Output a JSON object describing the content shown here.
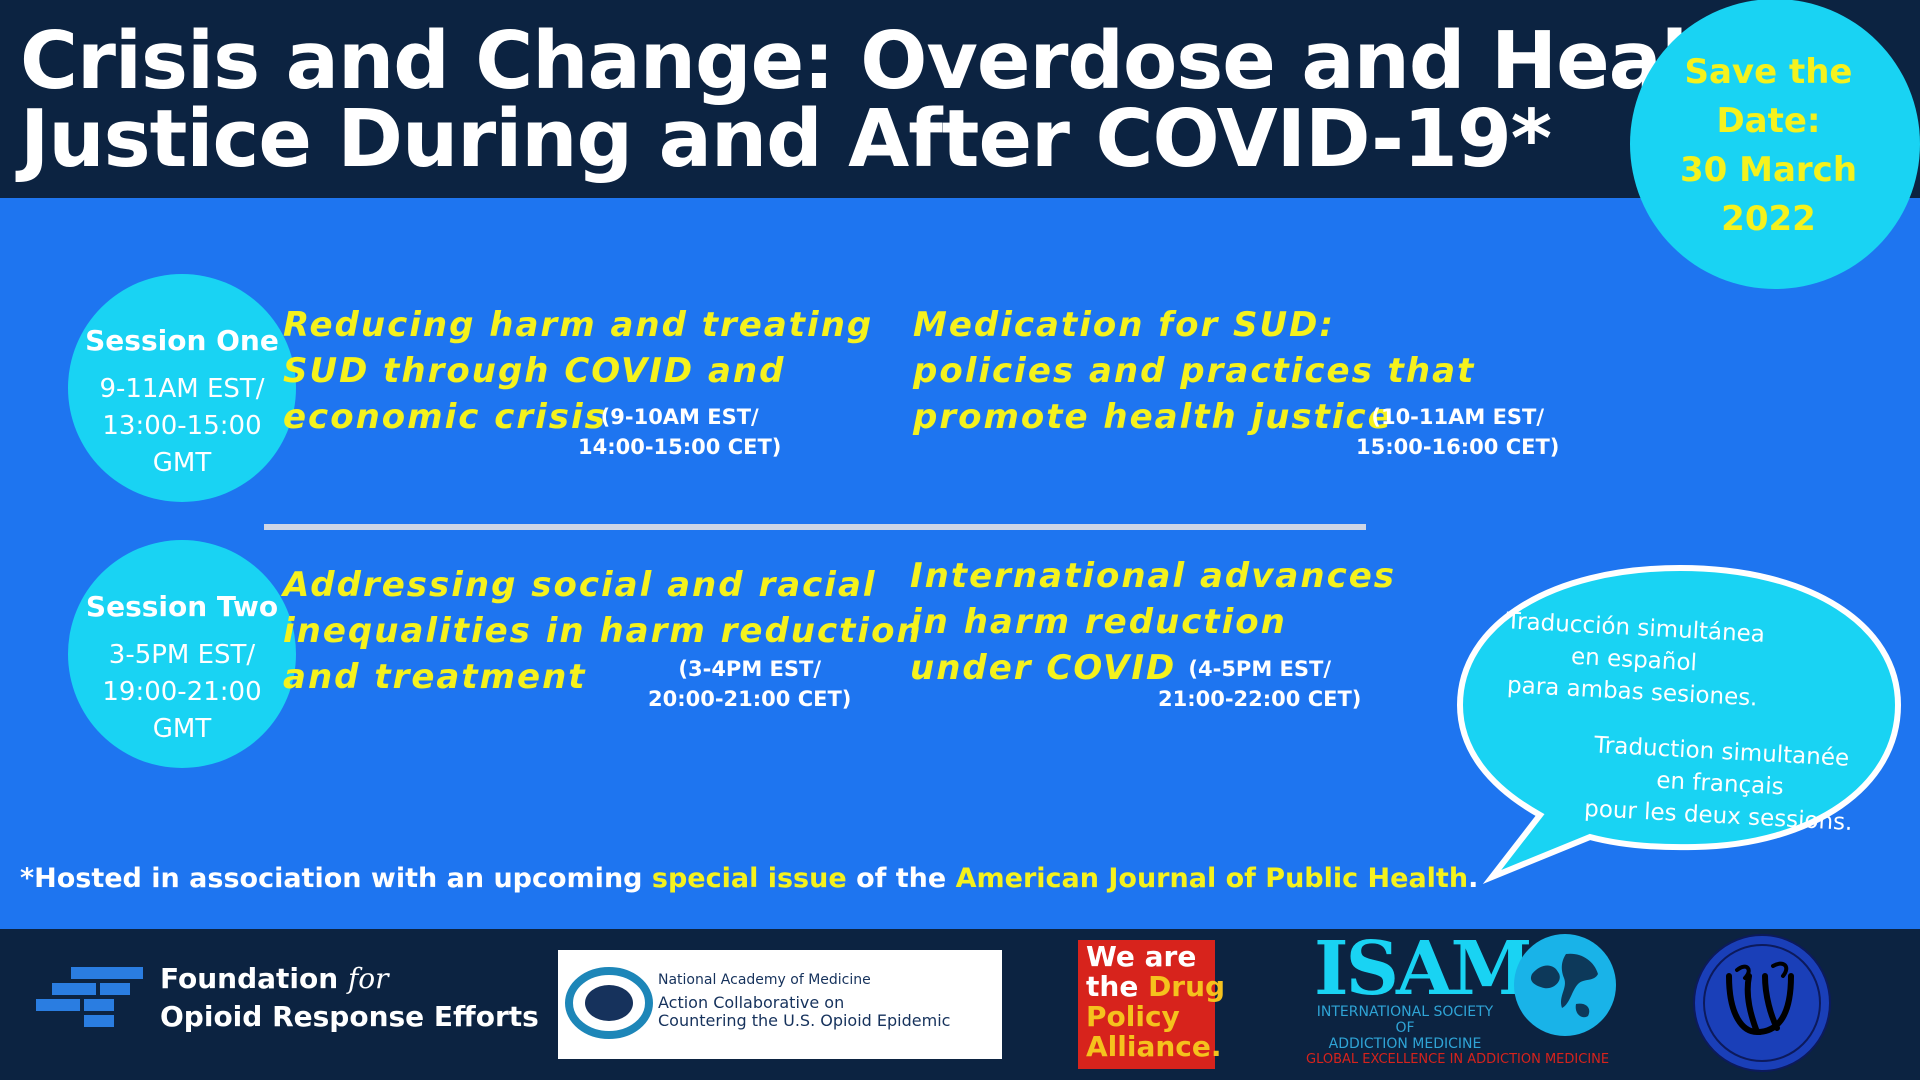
{
  "title": {
    "line1": "Crisis and Change: Overdose and Health",
    "line2": "Justice During and After COVID-19*"
  },
  "save_the_date": {
    "line1": "Save the",
    "line2": "Date:",
    "line3": "30 March",
    "line4": "2022"
  },
  "sessions": [
    {
      "title": "Session One",
      "time_line1": "9-11AM EST/",
      "time_line2": "13:00-15:00",
      "time_line3": "GMT",
      "talks": [
        {
          "lines": [
            "Reducing harm and treating",
            "SUD through COVID and",
            "economic crisis"
          ],
          "time_line1": "(9-10AM EST/",
          "time_line2": "14:00-15:00 CET)"
        },
        {
          "lines": [
            "Medication for SUD:",
            "policies and practices that",
            "promote health justice"
          ],
          "time_line1": "(10-11AM EST/",
          "time_line2": "15:00-16:00 CET)"
        }
      ]
    },
    {
      "title": "Session Two",
      "time_line1": "3-5PM EST/",
      "time_line2": "19:00-21:00",
      "time_line3": "GMT",
      "talks": [
        {
          "lines": [
            "Addressing social and racial",
            "inequalities in harm reduction",
            "and treatment"
          ],
          "time_line1": "(3-4PM EST/",
          "time_line2": "20:00-21:00 CET)"
        },
        {
          "lines": [
            "International advances",
            "in harm reduction",
            "under COVID"
          ],
          "time_line1": "(4-5PM EST/",
          "time_line2": "21:00-22:00 CET)"
        }
      ]
    }
  ],
  "translation": {
    "es_line1": "Traducción simultánea",
    "es_line2": "en español",
    "es_line3": "para ambas sesiones.",
    "fr_line1": "Traduction simultanée",
    "fr_line2": "en français",
    "fr_line3": "pour les deux sessions."
  },
  "footnote": {
    "part1": "*Hosted in association with an upcoming ",
    "highlight1": "special issue",
    "part2": " of the ",
    "highlight2": "American Journal of Public Health",
    "part3": "."
  },
  "logos": {
    "forre_line1": "Foundation ",
    "forre_for": "for",
    "forre_line2": "Opioid Response Efforts",
    "nam_line1": "National Academy of Medicine",
    "nam_line2": "Action Collaborative on",
    "nam_line3": "Countering the U.S. Opioid Epidemic",
    "dpa_line1": "We are",
    "dpa_line2a": "the ",
    "dpa_line2b": "Drug",
    "dpa_line3": "Policy",
    "dpa_line4": "Alliance.",
    "isam_title": "ISAM",
    "isam_sub1": "INTERNATIONAL SOCIETY OF",
    "isam_sub2": "ADDICTION MEDICINE",
    "isam_tagline": "GLOBAL EXCELLENCE IN ADDICTION MEDICINE"
  },
  "colors": {
    "navy": "#0c2341",
    "blue": "#1e75f0",
    "cyan": "#19d3f3",
    "yellow": "#f5f21d",
    "white": "#ffffff"
  }
}
